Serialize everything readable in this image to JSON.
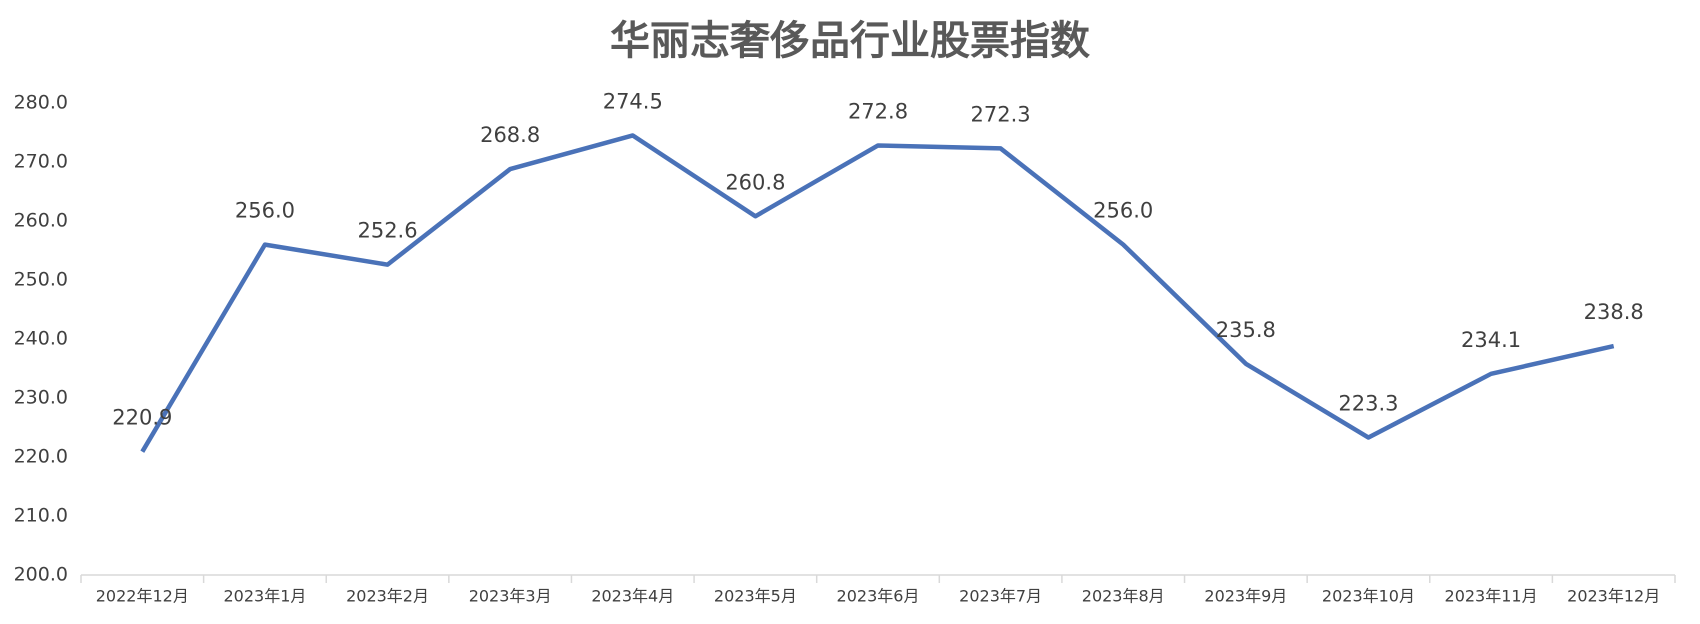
{
  "chart_data": {
    "type": "line",
    "title": "华丽志奢侈品行业股票指数",
    "categories": [
      "2022年12月",
      "2023年1月",
      "2023年2月",
      "2023年3月",
      "2023年4月",
      "2023年5月",
      "2023年6月",
      "2023年7月",
      "2023年8月",
      "2023年9月",
      "2023年10月",
      "2023年11月",
      "2023年12月"
    ],
    "values": [
      220.9,
      256,
      252.6,
      268.8,
      274.5,
      260.8,
      272.8,
      272.3,
      256,
      235.8,
      223.3,
      234.1,
      238.8
    ],
    "value_labels": [
      "220.9",
      "256.0",
      "252.6",
      "268.8",
      "274.5",
      "260.8",
      "272.8",
      "272.3",
      "256.0",
      "235.8",
      "223.3",
      "234.1",
      "238.8"
    ],
    "color": "#4a72b8",
    "ylim": [
      200,
      280
    ],
    "yticks": [
      {
        "value": 200,
        "label": "200.0"
      },
      {
        "value": 210,
        "label": "210.0"
      },
      {
        "value": 220,
        "label": "220.0"
      },
      {
        "value": 230,
        "label": "230.0"
      },
      {
        "value": 240,
        "label": "240.0"
      },
      {
        "value": 250,
        "label": "250.0"
      },
      {
        "value": 260,
        "label": "260.0"
      },
      {
        "value": 270,
        "label": "270.0"
      },
      {
        "value": 280,
        "label": "280.0"
      }
    ],
    "grid": false
  }
}
